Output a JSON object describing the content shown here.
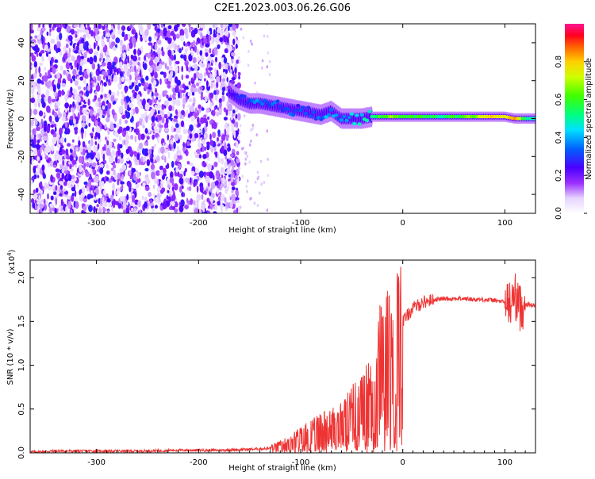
{
  "title": "C2E1.2023.003.06.26.G06",
  "colorbar": {
    "label": "Normalized spectral amplitude",
    "ticks": [
      "0.0",
      "0.2",
      "0.4",
      "0.6",
      "0.8"
    ],
    "tick_values": [
      0.0,
      0.2,
      0.4,
      0.6,
      0.8
    ],
    "range": [
      0,
      1
    ]
  },
  "chart_data": [
    {
      "type": "heatmap",
      "title": "",
      "xlabel": "Height of straight line (km)",
      "ylabel": "Frequency (Hz)",
      "xlim": [
        -365,
        130
      ],
      "ylim": [
        -50,
        50
      ],
      "xticks": [
        -300,
        -200,
        -100,
        0,
        100
      ],
      "xtick_labels": [
        "-300",
        "-200",
        "-100",
        "0",
        "100"
      ],
      "yticks": [
        -40,
        -20,
        0,
        20,
        40
      ],
      "ytick_labels": [
        "-40",
        "-20",
        "0",
        "20",
        "40"
      ],
      "noise_region": {
        "x": [
          -365,
          -160
        ],
        "y": [
          -50,
          50
        ],
        "amplitude": 0.15
      },
      "ridge": [
        {
          "x": -170,
          "y": 14,
          "amp": 0.2
        },
        {
          "x": -160,
          "y": 10,
          "amp": 0.3
        },
        {
          "x": -150,
          "y": 8,
          "amp": 0.35
        },
        {
          "x": -140,
          "y": 8,
          "amp": 0.35
        },
        {
          "x": -130,
          "y": 7,
          "amp": 0.35
        },
        {
          "x": -120,
          "y": 6,
          "amp": 0.3
        },
        {
          "x": -110,
          "y": 5,
          "amp": 0.35
        },
        {
          "x": -100,
          "y": 4,
          "amp": 0.3
        },
        {
          "x": -90,
          "y": 3,
          "amp": 0.35
        },
        {
          "x": -80,
          "y": 2,
          "amp": 0.35
        },
        {
          "x": -70,
          "y": 4,
          "amp": 0.4
        },
        {
          "x": -60,
          "y": 0,
          "amp": 0.35
        },
        {
          "x": -50,
          "y": 0,
          "amp": 0.4
        },
        {
          "x": -40,
          "y": 0,
          "amp": 0.45
        },
        {
          "x": -30,
          "y": 1,
          "amp": 0.5
        },
        {
          "x": -20,
          "y": 1,
          "amp": 0.6
        },
        {
          "x": -10,
          "y": 1,
          "amp": 0.65
        },
        {
          "x": 0,
          "y": 1,
          "amp": 0.6
        },
        {
          "x": 20,
          "y": 1,
          "amp": 0.55
        },
        {
          "x": 40,
          "y": 1,
          "amp": 0.55
        },
        {
          "x": 60,
          "y": 1,
          "amp": 0.6
        },
        {
          "x": 80,
          "y": 1,
          "amp": 0.75
        },
        {
          "x": 100,
          "y": 1,
          "amp": 0.75
        },
        {
          "x": 110,
          "y": 0,
          "amp": 0.8
        },
        {
          "x": 120,
          "y": 0,
          "amp": 0.55
        },
        {
          "x": 130,
          "y": 0,
          "amp": 0.5
        }
      ]
    },
    {
      "type": "line",
      "title": "",
      "xlabel": "Height of straight line (km)",
      "ylabel": "SNR (10 * v/v)",
      "y_multiplier": "(x10",
      "y_multiplier_exp": "4",
      "y_multiplier_close": ")",
      "xlim": [
        -365,
        130
      ],
      "ylim": [
        0,
        2.2
      ],
      "xticks": [
        -300,
        -200,
        -100,
        0,
        100
      ],
      "xtick_labels": [
        "-300",
        "-200",
        "-100",
        "0",
        "100"
      ],
      "yticks": [
        0.0,
        0.5,
        1.0,
        1.5,
        2.0
      ],
      "ytick_labels": [
        "0.0",
        "0.5",
        "1.0",
        "1.5",
        "2.0"
      ],
      "color": "#ee3333",
      "series": [
        {
          "x": [
            -365,
            -340,
            -300,
            -260,
            -220,
            -180,
            -150,
            -130,
            -120,
            -110,
            -100,
            -90,
            -80,
            -70,
            -60,
            -50,
            -40,
            -30,
            -25,
            -20,
            -15,
            -10,
            -5,
            0,
            10,
            20,
            30,
            40,
            50,
            60,
            70,
            80,
            90,
            100,
            105,
            110,
            115,
            120,
            130
          ],
          "y": [
            0.01,
            0.02,
            0.02,
            0.02,
            0.03,
            0.03,
            0.04,
            0.05,
            0.08,
            0.12,
            0.18,
            0.22,
            0.28,
            0.3,
            0.35,
            0.45,
            0.55,
            0.65,
            0.8,
            1.2,
            1.1,
            1.05,
            1.3,
            1.5,
            1.65,
            1.72,
            1.75,
            1.76,
            1.76,
            1.76,
            1.75,
            1.75,
            1.74,
            1.72,
            1.7,
            1.8,
            1.65,
            1.7,
            1.68
          ]
        }
      ]
    }
  ]
}
